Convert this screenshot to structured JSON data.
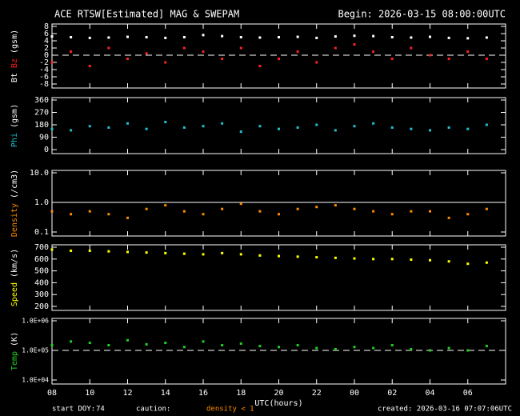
{
  "chart_data": [
    {
      "type": "scatter",
      "title": "ACE RTSW[Estimated] MAG & SWEPAM",
      "subtitle": "Begin: 2026-03-15 08:00:00UTC",
      "ylabel": "(gsm)",
      "xlim": [
        0,
        24
      ],
      "ylim": [
        -8,
        8
      ],
      "yticks": [
        -8,
        -6,
        -4,
        -2,
        0,
        2,
        4,
        6,
        8
      ],
      "refline": {
        "value": 0,
        "style": "dashed"
      },
      "x": [
        0,
        1,
        2,
        3,
        4,
        5,
        6,
        7,
        8,
        9,
        10,
        11,
        12,
        13,
        14,
        15,
        16,
        17,
        18,
        19,
        20,
        21,
        22,
        23
      ],
      "series": [
        {
          "name": "Bt",
          "color": "#ffffff",
          "values": [
            5.2,
            5.0,
            4.8,
            4.9,
            5.1,
            5.0,
            4.8,
            5.0,
            5.6,
            5.3,
            5.0,
            4.9,
            5.0,
            5.1,
            4.8,
            5.2,
            5.4,
            5.3,
            5.0,
            4.9,
            5.1,
            4.8,
            4.7,
            4.9
          ]
        },
        {
          "name": "Bz",
          "color": "#ff2020",
          "values": [
            -2,
            1,
            -3,
            2,
            -1,
            0.5,
            -2,
            2,
            1,
            -1,
            2,
            -3,
            -1,
            1,
            -2,
            2,
            3,
            1,
            -1,
            2,
            0,
            -1,
            1,
            -1
          ]
        }
      ]
    },
    {
      "type": "scatter",
      "ylabel": "(gsm)",
      "xlim": [
        0,
        24
      ],
      "ylim": [
        0,
        360
      ],
      "yticks": [
        0,
        90,
        180,
        270,
        360
      ],
      "x": [
        0,
        1,
        2,
        3,
        4,
        5,
        6,
        7,
        8,
        9,
        10,
        11,
        12,
        13,
        14,
        15,
        16,
        17,
        18,
        19,
        20,
        21,
        22,
        23
      ],
      "series": [
        {
          "name": "Phi",
          "color": "#20c0d0",
          "values": [
            150,
            140,
            170,
            160,
            190,
            150,
            200,
            160,
            170,
            190,
            130,
            170,
            150,
            160,
            180,
            140,
            170,
            190,
            160,
            150,
            140,
            160,
            150,
            180
          ]
        }
      ]
    },
    {
      "type": "scatter",
      "ylabel": "(/cm3)",
      "log": true,
      "xlim": [
        0,
        24
      ],
      "ylim": [
        0.1,
        10
      ],
      "yticks": [
        0.1,
        {
          "value": 1,
          "label": "1.0"
        },
        {
          "value": 10,
          "label": "10.0"
        }
      ],
      "refline": {
        "value": 1,
        "style": "solid"
      },
      "x": [
        0,
        1,
        2,
        3,
        4,
        5,
        6,
        7,
        8,
        9,
        10,
        11,
        12,
        13,
        14,
        15,
        16,
        17,
        18,
        19,
        20,
        21,
        22,
        23
      ],
      "series": [
        {
          "name": "Density",
          "color": "#ff8c00",
          "values": [
            0.5,
            0.4,
            0.5,
            0.4,
            0.3,
            0.6,
            0.8,
            0.5,
            0.4,
            0.6,
            0.9,
            0.5,
            0.4,
            0.6,
            0.7,
            0.8,
            0.6,
            0.5,
            0.4,
            0.5,
            0.5,
            0.3,
            0.4,
            0.6
          ]
        }
      ]
    },
    {
      "type": "scatter",
      "ylabel": "(km/s)",
      "xlim": [
        0,
        24
      ],
      "ylim": [
        200,
        700
      ],
      "yticks": [
        200,
        300,
        400,
        500,
        600,
        700
      ],
      "x": [
        0,
        1,
        2,
        3,
        4,
        5,
        6,
        7,
        8,
        9,
        10,
        11,
        12,
        13,
        14,
        15,
        16,
        17,
        18,
        19,
        20,
        21,
        22,
        23
      ],
      "series": [
        {
          "name": "Speed",
          "color": "#ffff00",
          "values": [
            680,
            670,
            670,
            665,
            660,
            655,
            650,
            645,
            640,
            650,
            640,
            630,
            625,
            620,
            615,
            610,
            605,
            600,
            600,
            595,
            590,
            580,
            560,
            570
          ]
        }
      ]
    },
    {
      "type": "scatter",
      "ylabel": "(K)",
      "log": true,
      "xlim": [
        0,
        24
      ],
      "ylim": [
        10000,
        1000000
      ],
      "yticks": [
        {
          "value": 10000,
          "label": "1.0E+04"
        },
        {
          "value": 100000,
          "label": "1.0E+05"
        },
        {
          "value": 1000000,
          "label": "1.0E+06"
        }
      ],
      "refline": {
        "value": 100000,
        "style": "dashed"
      },
      "xlabel": "UTC(hours)",
      "xticks": [
        {
          "value": 0,
          "label": "08"
        },
        {
          "value": 2,
          "label": "10"
        },
        {
          "value": 4,
          "label": "12"
        },
        {
          "value": 6,
          "label": "14"
        },
        {
          "value": 8,
          "label": "16"
        },
        {
          "value": 10,
          "label": "18"
        },
        {
          "value": 12,
          "label": "20"
        },
        {
          "value": 14,
          "label": "22"
        },
        {
          "value": 16,
          "label": "00"
        },
        {
          "value": 18,
          "label": "02"
        },
        {
          "value": 20,
          "label": "04"
        },
        {
          "value": 22,
          "label": "06"
        }
      ],
      "x": [
        0,
        1,
        2,
        3,
        4,
        5,
        6,
        7,
        8,
        9,
        10,
        11,
        12,
        13,
        14,
        15,
        16,
        17,
        18,
        19,
        20,
        21,
        22,
        23
      ],
      "series": [
        {
          "name": "Temp",
          "color": "#20d020",
          "values": [
            150000,
            200000,
            180000,
            150000,
            220000,
            160000,
            180000,
            130000,
            200000,
            150000,
            170000,
            140000,
            130000,
            150000,
            120000,
            110000,
            130000,
            120000,
            150000,
            110000,
            100000,
            120000,
            100000,
            140000
          ]
        }
      ]
    }
  ],
  "footer": {
    "start_label": "start DOY:",
    "doy": "74",
    "caution_label": "caution:",
    "caution": "density < 1",
    "created": "created: 2026-03-16 07:07:06UTC"
  }
}
